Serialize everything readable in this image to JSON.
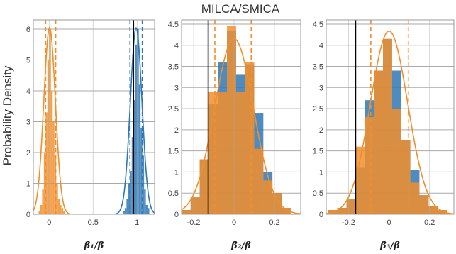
{
  "figure": {
    "title": "MILCA/SMICA",
    "ylabel": "Probability Density"
  },
  "colors": {
    "orange": "#f28e2b",
    "blue": "#2f78b4",
    "black": "#000000",
    "grid": "#aaaaaa",
    "frame": "#999999",
    "overlap": "#d08530"
  },
  "chart_data": [
    {
      "type": "bar",
      "xlabel": "β̂₁/β",
      "xlim": [
        -0.18,
        1.2
      ],
      "ylim": [
        0,
        6.3
      ],
      "xticks": [
        0,
        0.5,
        1
      ],
      "xtick_labels": [
        "0",
        "0.5",
        "1"
      ],
      "yticks": [
        0,
        1,
        2,
        3,
        4,
        5,
        6
      ],
      "ytick_labels": [
        "0",
        "1",
        "2",
        "3",
        "4",
        "5",
        "6"
      ],
      "grid": true,
      "series": [
        {
          "color": "orange",
          "bin_edges": [
            -0.12,
            -0.1,
            -0.08,
            -0.06,
            -0.04,
            -0.02,
            0.0,
            0.02,
            0.04,
            0.06,
            0.08,
            0.1,
            0.12,
            0.14,
            0.16,
            0.18
          ],
          "values": [
            0.1,
            0.3,
            0.8,
            2.0,
            3.3,
            5.0,
            6.0,
            4.0,
            3.0,
            1.9,
            1.0,
            0.5,
            0.3,
            0.2,
            0.1
          ],
          "fit": {
            "mean": 0.005,
            "sd": 0.066
          },
          "vlines_dashed": [
            -0.04,
            0.075
          ]
        },
        {
          "color": "blue",
          "bin_edges": [
            0.84,
            0.86,
            0.88,
            0.9,
            0.92,
            0.94,
            0.96,
            0.98,
            1.0,
            1.02,
            1.04,
            1.06,
            1.08,
            1.1,
            1.12,
            1.14
          ],
          "values": [
            0.1,
            0.2,
            0.5,
            1.0,
            1.4,
            2.5,
            3.7,
            5.5,
            6.0,
            4.2,
            2.8,
            1.9,
            0.8,
            0.3,
            0.2
          ],
          "fit": {
            "mean": 0.99,
            "sd": 0.066
          },
          "vlines_dashed": [
            0.92,
            1.06
          ]
        }
      ],
      "vline_solid": 0.96
    },
    {
      "type": "bar",
      "xlabel": "β̂₂/β",
      "xlim": [
        -0.26,
        0.33
      ],
      "ylim": [
        0,
        4.6
      ],
      "xticks": [
        -0.2,
        0,
        0.2
      ],
      "xtick_labels": [
        "-0.2",
        "0",
        "0.2"
      ],
      "yticks": [
        0,
        0.5,
        1,
        1.5,
        2,
        2.5,
        3,
        3.5,
        4,
        4.5
      ],
      "ytick_labels": [
        "0",
        "0.5",
        "1",
        "1.5",
        "2",
        "2.5",
        "3",
        "3.5",
        "4",
        "4.5"
      ],
      "grid": true,
      "series": [
        {
          "color": "blue",
          "bin_edges": [
            -0.26,
            -0.215,
            -0.17,
            -0.125,
            -0.08,
            -0.035,
            0.01,
            0.055,
            0.1,
            0.145,
            0.19,
            0.235,
            0.28
          ],
          "values": [
            0.1,
            0.4,
            1.3,
            2.6,
            3.6,
            4.35,
            3.3,
            3.55,
            2.4,
            1.0,
            0.5,
            0.15
          ],
          "fit": null,
          "vlines_dashed": []
        },
        {
          "color": "orange",
          "bin_edges": [
            -0.26,
            -0.215,
            -0.17,
            -0.125,
            -0.08,
            -0.035,
            0.01,
            0.055,
            0.1,
            0.145,
            0.19,
            0.235,
            0.28
          ],
          "values": [
            0.1,
            0.4,
            1.3,
            2.9,
            2.9,
            4.45,
            2.9,
            3.6,
            1.55,
            0.8,
            0.5,
            0.15
          ],
          "fit": {
            "mean": 0.0,
            "sd": 0.096
          },
          "vlines_dashed": [
            -0.095,
            0.085
          ]
        }
      ],
      "vline_solid": -0.128
    },
    {
      "type": "bar",
      "xlabel": "β̂₃/β",
      "xlim": [
        -0.31,
        0.32
      ],
      "ylim": [
        0,
        4.6
      ],
      "xticks": [
        -0.2,
        0,
        0.2
      ],
      "xtick_labels": [
        "-0.2",
        "0",
        "0.2"
      ],
      "yticks": [
        0,
        0.5,
        1,
        1.5,
        2,
        2.5,
        3,
        3.5,
        4,
        4.5
      ],
      "ytick_labels": [
        "0",
        "0.5",
        "1",
        "1.5",
        "2",
        "2.5",
        "3",
        "3.5",
        "4",
        "4.5"
      ],
      "grid": true,
      "series": [
        {
          "color": "blue",
          "bin_edges": [
            -0.3,
            -0.255,
            -0.21,
            -0.165,
            -0.12,
            -0.075,
            -0.03,
            0.015,
            0.06,
            0.105,
            0.15,
            0.195,
            0.24,
            0.285
          ],
          "values": [
            0.1,
            0.15,
            0.35,
            1.1,
            2.7,
            3.4,
            4.15,
            3.4,
            1.75,
            1.05,
            0.45,
            0.2,
            0.1
          ],
          "fit": null,
          "vlines_dashed": []
        },
        {
          "color": "orange",
          "bin_edges": [
            -0.3,
            -0.255,
            -0.21,
            -0.165,
            -0.12,
            -0.075,
            -0.03,
            0.015,
            0.06,
            0.105,
            0.15,
            0.195,
            0.24,
            0.285
          ],
          "values": [
            0.1,
            0.15,
            0.35,
            1.6,
            2.3,
            3.4,
            4.15,
            2.5,
            1.75,
            0.75,
            0.45,
            0.2,
            0.1
          ],
          "fit": {
            "mean": 0.0,
            "sd": 0.092
          },
          "vlines_dashed": [
            -0.09,
            0.095
          ]
        }
      ],
      "vline_solid": -0.165
    }
  ]
}
